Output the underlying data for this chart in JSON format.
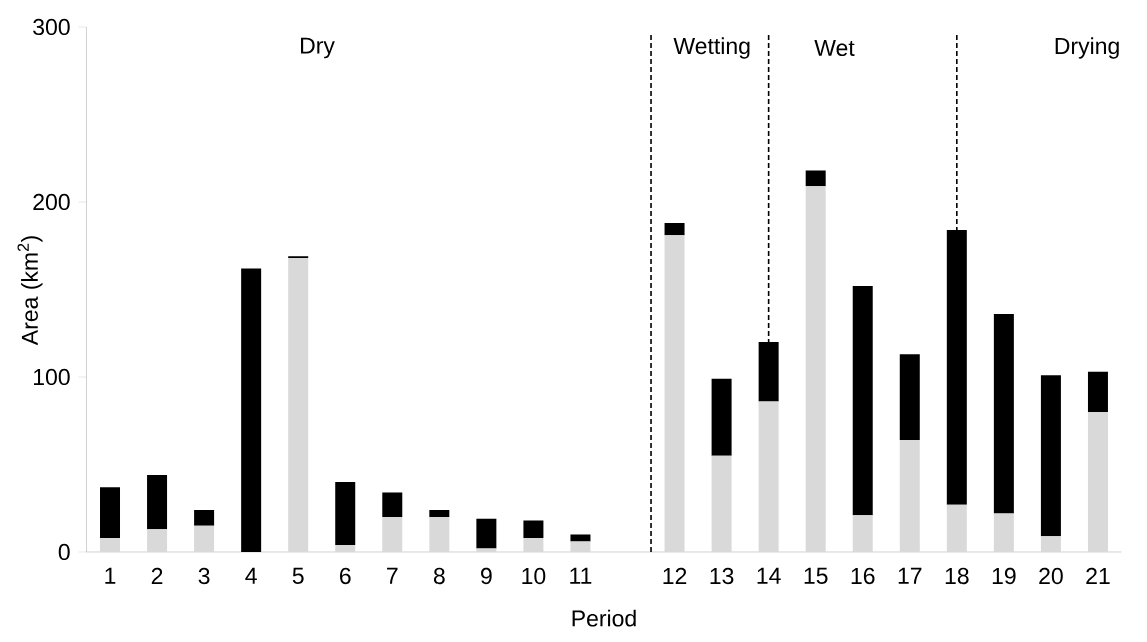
{
  "chart_data": {
    "type": "bar",
    "stacked": true,
    "xlabel": "Period",
    "ylabel": "Area (km$^{2}$)",
    "categories": [
      "1",
      "2",
      "3",
      "4",
      "5",
      "6",
      "7",
      "8",
      "9",
      "10",
      "11",
      null,
      "12",
      "13",
      "14",
      "15",
      "16",
      "17",
      "18",
      "19",
      "20",
      "21"
    ],
    "series": [
      {
        "color": "#d9d9d9",
        "values": [
          8,
          13,
          15,
          0,
          168,
          4,
          20,
          20,
          2,
          8,
          6,
          null,
          181,
          55,
          86,
          209,
          21,
          64,
          27,
          22,
          9,
          80
        ]
      },
      {
        "color": "#000000",
        "values": [
          29,
          31,
          9,
          162,
          1,
          36,
          14,
          4,
          17,
          10,
          4,
          null,
          7,
          44,
          34,
          9,
          131,
          49,
          157,
          114,
          92,
          23
        ]
      }
    ],
    "ylim": [
      0,
      300
    ],
    "yticks": [
      0,
      100,
      200,
      300
    ],
    "ref_lines": [
      {
        "axis": "x",
        "value": "14",
        "color": "#000000",
        "line_style": "dashed"
      },
      {
        "axis": "x",
        "value": "18",
        "color": "#000000",
        "line_style": "dashed"
      }
    ],
    "annotations": [
      "Dry",
      "Wetting",
      "Wet",
      "Drying"
    ]
  }
}
